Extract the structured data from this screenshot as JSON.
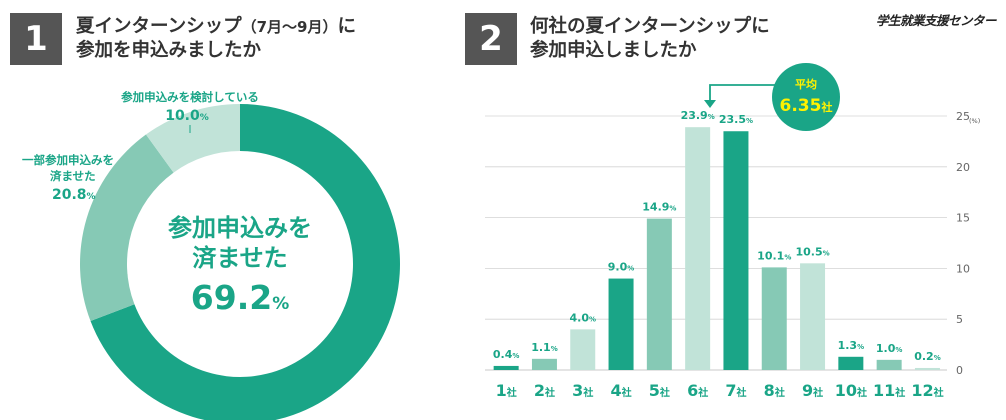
{
  "brand": "学生就業支援センター",
  "panel1": {
    "number": "1",
    "title_line1_main": "夏インターンシップ",
    "title_line1_paren": "（7月〜9月）",
    "title_line1_end": "に",
    "title_line2": "参加を申込みましたか",
    "center_line1": "参加申込みを",
    "center_line2": "済ませた",
    "center_value": "69.2",
    "center_unit": "%",
    "label_considering": "参加申込みを検討している",
    "value_considering": "10.0",
    "label_partial_line1": "一部参加申込みを",
    "label_partial_line2": "済ませた",
    "value_partial": "20.8",
    "pct_unit": "%"
  },
  "panel2": {
    "number": "2",
    "title_line1": "何社の夏インターンシップに",
    "title_line2": "参加申込しましたか",
    "average_label": "平均",
    "average_value": "6.35",
    "average_unit": "社",
    "bar_unit": "%",
    "axis_unit": "(%)",
    "category_unit": "社"
  },
  "chart_data": [
    {
      "type": "pie",
      "title": "夏インターンシップ（7月〜9月）に参加を申込みましたか",
      "categories": [
        "参加申込みを済ませた",
        "一部参加申込みを済ませた",
        "参加申込みを検討している"
      ],
      "values": [
        69.2,
        20.8,
        10.0
      ],
      "colors": [
        "#1aa587",
        "#86c9b5",
        "#c1e3d8"
      ]
    },
    {
      "type": "bar",
      "title": "何社の夏インターンシップに参加申込しましたか",
      "categories": [
        "1",
        "2",
        "3",
        "4",
        "5",
        "6",
        "7",
        "8",
        "9",
        "10",
        "11",
        "12"
      ],
      "values": [
        0.4,
        1.1,
        4.0,
        9.0,
        14.9,
        23.9,
        23.5,
        10.1,
        10.5,
        1.3,
        1.0,
        0.2
      ],
      "colors": [
        "#1aa587",
        "#86c9b5",
        "#c1e3d8",
        "#1aa587",
        "#86c9b5",
        "#c1e3d8",
        "#1aa587",
        "#86c9b5",
        "#c1e3d8",
        "#1aa587",
        "#86c9b5",
        "#c1e3d8"
      ],
      "ylim": [
        0,
        25
      ],
      "yticks": [
        0,
        5,
        10,
        15,
        20,
        25
      ],
      "ylabel": "(%)",
      "grid": true
    }
  ]
}
